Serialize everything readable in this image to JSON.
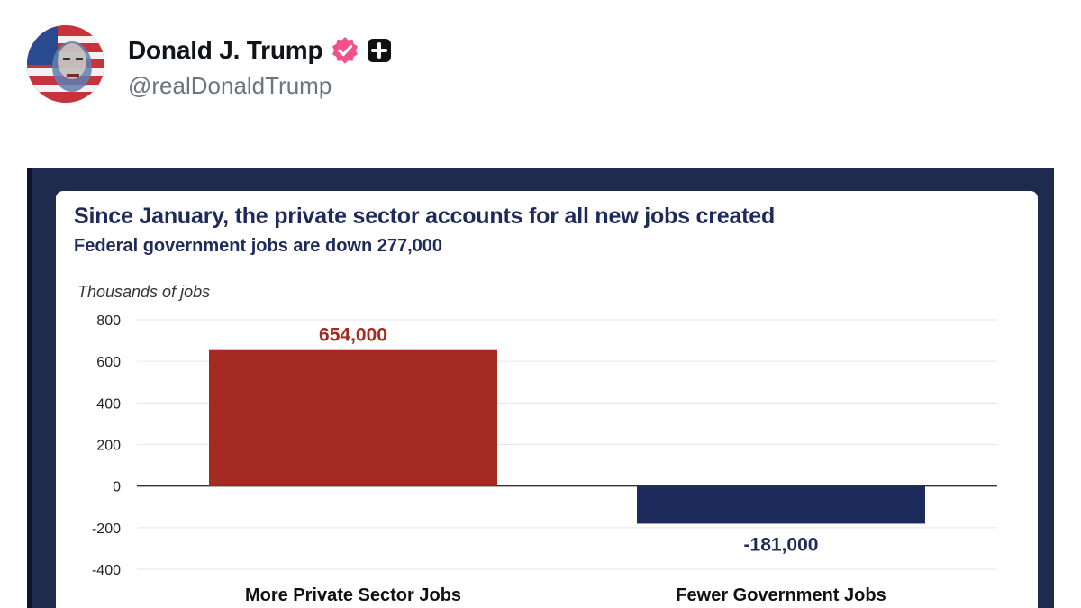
{
  "post": {
    "display_name": "Donald J. Trump",
    "handle": "@realDonaldTrump",
    "verified_icon": "verified-badge-icon",
    "plus_icon": "plus-badge-icon"
  },
  "colors": {
    "verified": "#f4508b",
    "private_bar": "#a52a22",
    "government_bar": "#1c2a5c",
    "title": "#1e2a5a",
    "sheet_border": "#1f2a4f"
  },
  "chart_data": {
    "type": "bar",
    "title": "Since January, the private sector accounts for all new jobs created",
    "subtitle": "Federal government jobs are down 277,000",
    "ylabel": "Thousands of jobs",
    "xlabel": "",
    "categories": [
      "More Private Sector Jobs",
      "Fewer Government Jobs"
    ],
    "values": [
      654,
      -181
    ],
    "data_labels": [
      "654,000",
      "-181,000"
    ],
    "ylim": [
      -400,
      800
    ],
    "yticks": [
      800,
      600,
      400,
      200,
      0,
      -200,
      -400
    ],
    "grid": true
  }
}
